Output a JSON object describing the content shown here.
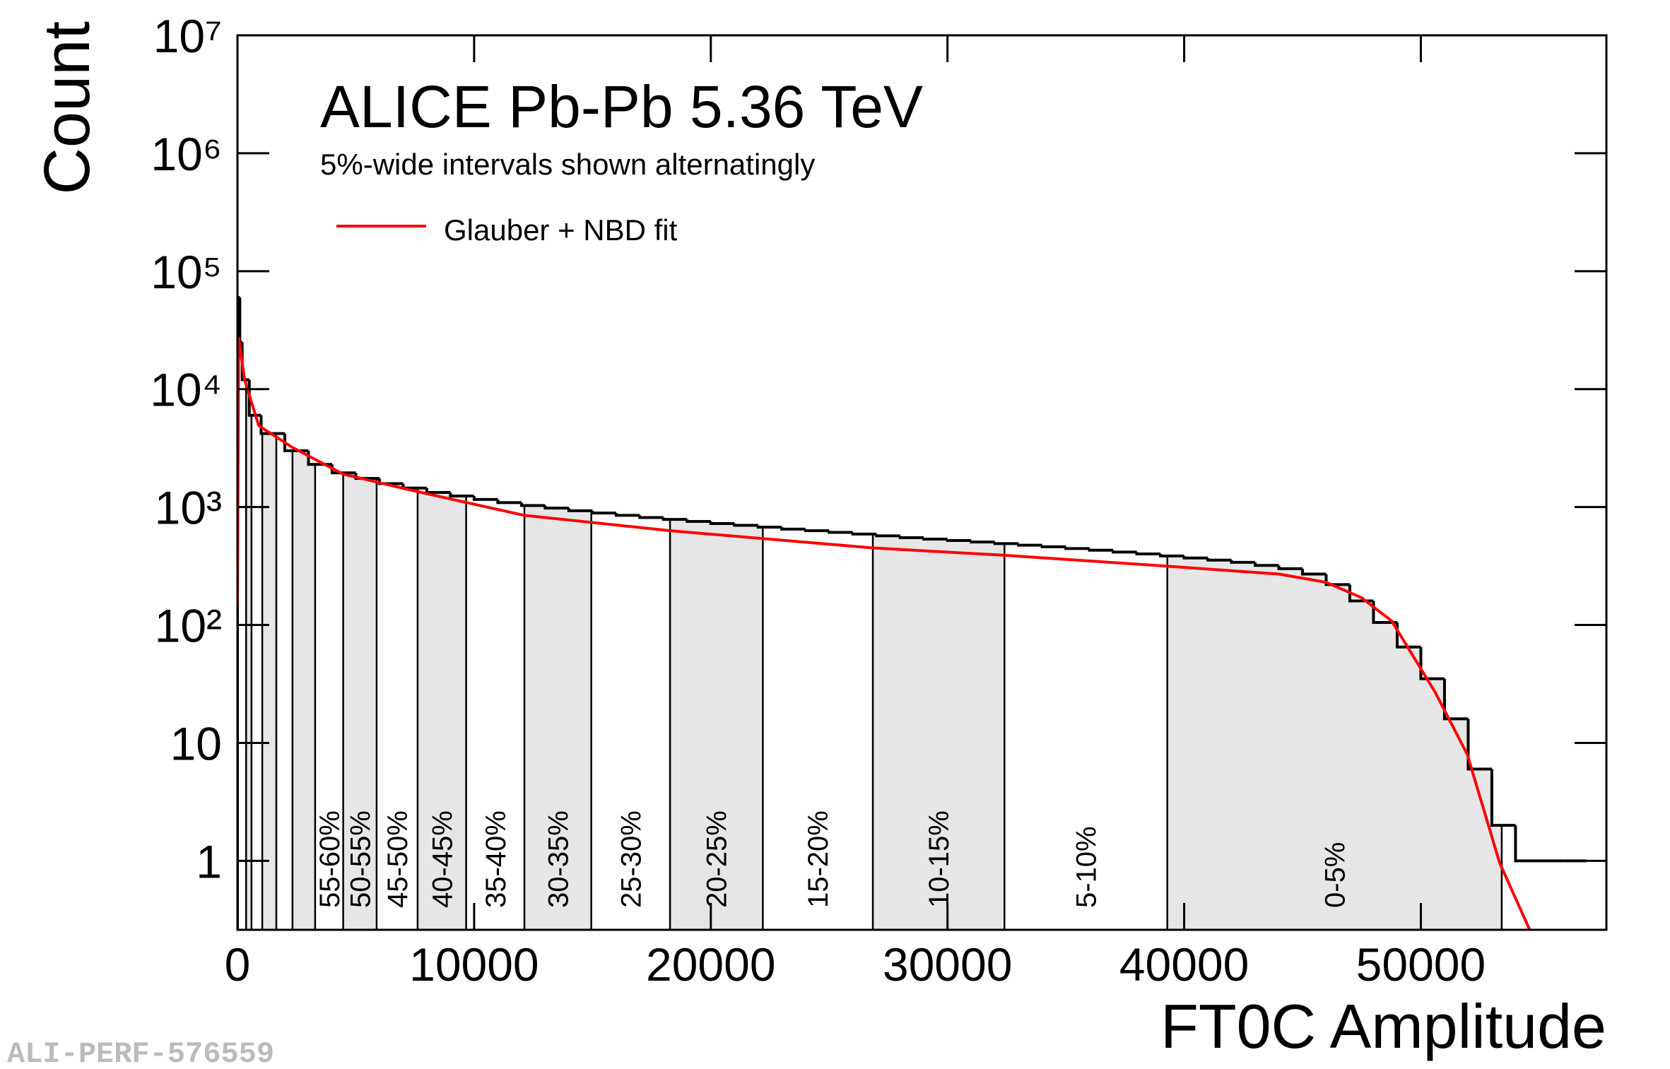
{
  "chart_data": {
    "type": "histogram",
    "title": "ALICE Pb-Pb 5.36 TeV",
    "subtitle": "5%-wide intervals shown alternatingly",
    "x_label": "FT0C Amplitude",
    "y_label": "Count",
    "watermark": "ALI-PERF-576559",
    "xlim": [
      0,
      57840
    ],
    "ylim": [
      0.26,
      10000000
    ],
    "log_y": true,
    "xticks": [
      0,
      10000,
      20000,
      30000,
      40000,
      50000
    ],
    "yticks": [
      1,
      10,
      {
        "value": 100,
        "label": "10²"
      },
      {
        "value": 1000,
        "label": "10³"
      },
      {
        "value": 10000,
        "label": "10⁴"
      },
      {
        "value": 100000,
        "label": "10⁵"
      },
      {
        "value": 1000000,
        "label": "10⁶"
      },
      {
        "value": 10000000,
        "label": "10⁷"
      }
    ],
    "color": "#000000",
    "bins": [
      0,
      100,
      200,
      500,
      1000,
      2000,
      3000,
      4000,
      5000,
      6000,
      7000,
      8000,
      9000,
      10000,
      11000,
      12000,
      13000,
      14000,
      15000,
      16000,
      17000,
      18000,
      19000,
      20000,
      21000,
      22000,
      23000,
      24000,
      25000,
      26000,
      27000,
      28000,
      29000,
      30000,
      31000,
      32000,
      33000,
      34000,
      35000,
      36000,
      37000,
      38000,
      39000,
      40000,
      41000,
      42000,
      43000,
      44000,
      45000,
      46000,
      47000,
      48000,
      49000,
      50000,
      51000,
      52000,
      53000,
      54000,
      55000,
      56000,
      57000
    ],
    "counts": [
      60000,
      25000,
      12000,
      6000,
      4200,
      3000,
      2300,
      1950,
      1750,
      1580,
      1450,
      1330,
      1240,
      1160,
      1090,
      1030,
      980,
      930,
      890,
      850,
      815,
      785,
      755,
      725,
      700,
      675,
      650,
      630,
      610,
      590,
      570,
      550,
      535,
      520,
      505,
      490,
      475,
      460,
      445,
      430,
      415,
      400,
      385,
      370,
      355,
      340,
      320,
      300,
      270,
      220,
      160,
      105,
      65,
      35,
      16,
      6,
      2,
      1,
      1,
      1
    ],
    "fit": {
      "name": "Glauber + NBD fit",
      "color": "#ff0000",
      "x": [
        0,
        50,
        300,
        900,
        2325,
        4467,
        7612,
        12124,
        18277,
        26846,
        32406,
        39289,
        44000,
        46000,
        47500,
        48770,
        50600,
        51960,
        53330,
        54600
      ],
      "values": [
        150,
        27500,
        12000,
        4900,
        3200,
        1900,
        1350,
        850,
        630,
        450,
        390,
        315,
        270,
        230,
        170,
        108,
        27,
        8,
        0.96,
        0.26
      ]
    },
    "legend": "upper left",
    "interval_edges": [
      0,
      365,
      593,
      1048,
      1641,
      2325,
      3282,
      4467,
      5880,
      7612,
      9663,
      12124,
      14950,
      18277,
      22197,
      26846,
      32406,
      39289,
      53418
    ],
    "interval_labels": [
      null,
      null,
      null,
      null,
      null,
      null,
      "55-60%",
      "50-55%",
      "45-50%",
      "40-45%",
      "35-40%",
      "30-35%",
      "25-30%",
      "20-25%",
      "15-20%",
      "10-15%",
      "5-10%",
      "0-5%"
    ],
    "shade_color": "#e6e6e6"
  }
}
